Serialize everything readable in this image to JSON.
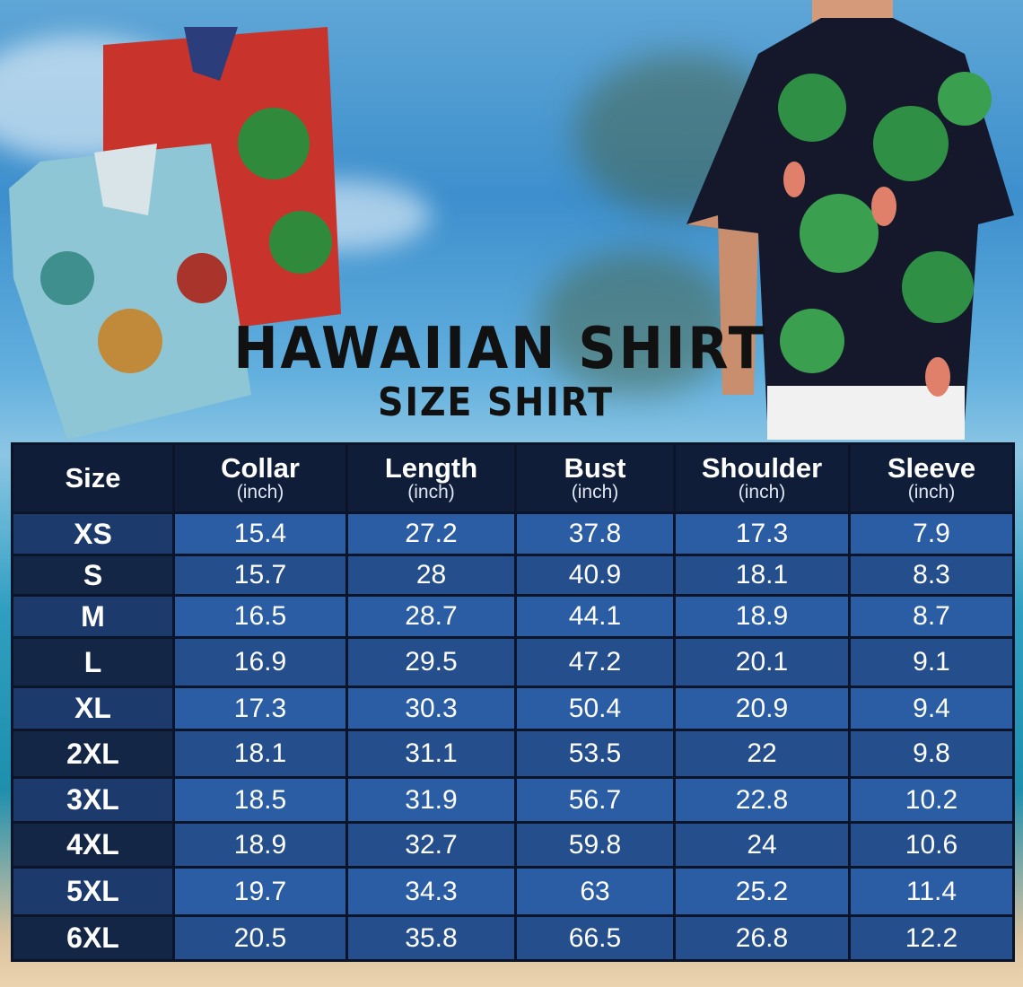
{
  "title": "HAWAIIAN SHIRT",
  "subtitle": "SIZE SHIRT",
  "colors": {
    "header_bg": "#0f1d38",
    "cell_light": "#2a5da3",
    "cell_dark": "#244e8c",
    "size_col": "#132645"
  },
  "table": {
    "headers": [
      {
        "label": "Size",
        "unit": ""
      },
      {
        "label": "Collar",
        "unit": "(inch)"
      },
      {
        "label": "Length",
        "unit": "(inch)"
      },
      {
        "label": "Bust",
        "unit": "(inch)"
      },
      {
        "label": "Shoulder",
        "unit": "(inch)"
      },
      {
        "label": "Sleeve",
        "unit": "(inch)"
      }
    ],
    "rows": [
      [
        "XS",
        "15.4",
        "27.2",
        "37.8",
        "17.3",
        "7.9"
      ],
      [
        "S",
        "15.7",
        "28",
        "40.9",
        "18.1",
        "8.3"
      ],
      [
        "M",
        "16.5",
        "28.7",
        "44.1",
        "18.9",
        "8.7"
      ],
      [
        "L",
        "16.9",
        "29.5",
        "47.2",
        "20.1",
        "9.1"
      ],
      [
        "XL",
        "17.3",
        "30.3",
        "50.4",
        "20.9",
        "9.4"
      ],
      [
        "2XL",
        "18.1",
        "31.1",
        "53.5",
        "22",
        "9.8"
      ],
      [
        "3XL",
        "18.5",
        "31.9",
        "56.7",
        "22.8",
        "10.2"
      ],
      [
        "4XL",
        "18.9",
        "32.7",
        "59.8",
        "24",
        "10.6"
      ],
      [
        "5XL",
        "19.7",
        "34.3",
        "63",
        "25.2",
        "11.4"
      ],
      [
        "6XL",
        "20.5",
        "35.8",
        "66.5",
        "26.8",
        "12.2"
      ]
    ]
  }
}
